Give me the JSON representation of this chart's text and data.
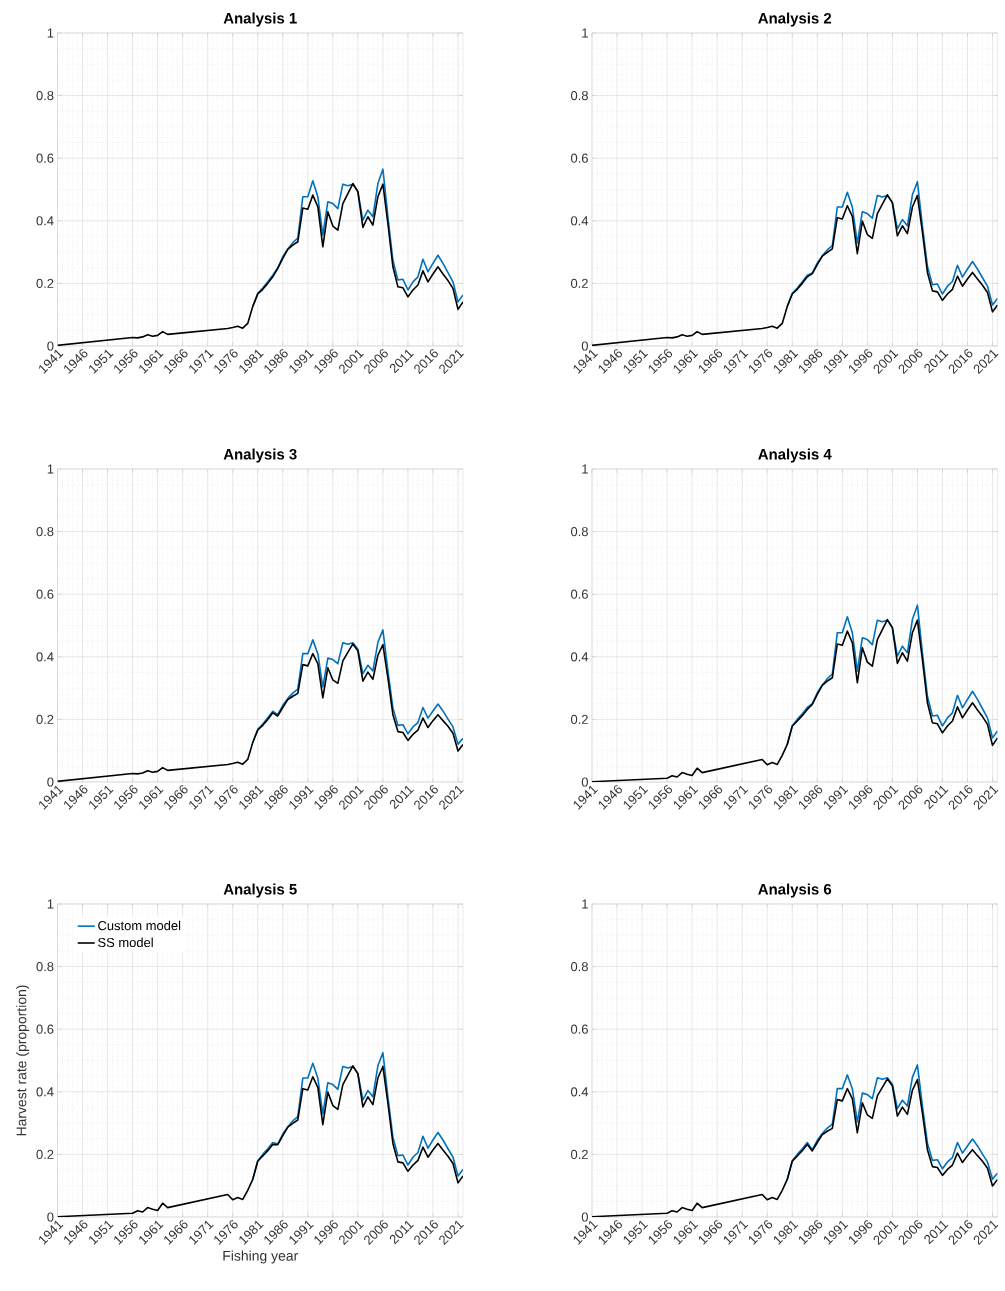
{
  "chart_data": [
    {
      "type": "line",
      "title": "Analysis 1",
      "x": [
        1941,
        1956,
        1957,
        1958,
        1959,
        1960,
        1961,
        1962,
        1963,
        1975,
        1976,
        1977,
        1978,
        1979,
        1980,
        1981,
        1982,
        1983,
        1984,
        1985,
        1986,
        1987,
        1988,
        1989,
        1990,
        1991,
        1992,
        1993,
        1994,
        1995,
        1996,
        1997,
        1998,
        1999,
        2000,
        2001,
        2002,
        2003,
        2004,
        2005,
        2006,
        2007,
        2008,
        2009,
        2010,
        2011,
        2012,
        2013,
        2014,
        2015,
        2016,
        2017,
        2018,
        2019,
        2020,
        2021,
        2022
      ],
      "xlim": [
        1941,
        2022
      ],
      "ylim": [
        0,
        1
      ],
      "xticks": [
        1941,
        1946,
        1951,
        1956,
        1961,
        1966,
        1971,
        1976,
        1981,
        1986,
        1991,
        1996,
        2001,
        2006,
        2011,
        2016,
        2021
      ],
      "yticks": [
        0,
        0.2,
        0.4,
        0.6,
        0.8,
        1
      ],
      "grid": true,
      "series": [
        {
          "color": "#0072bd",
          "values": [
            null,
            null,
            null,
            null,
            null,
            null,
            null,
            null,
            null,
            null,
            null,
            null,
            null,
            null,
            0.126,
            0.168,
            0.185,
            0.205,
            0.226,
            0.25,
            0.285,
            0.31,
            0.33,
            0.345,
            0.477,
            0.477,
            0.528,
            0.477,
            0.354,
            0.461,
            0.455,
            0.439,
            0.517,
            0.512,
            0.517,
            0.493,
            0.402,
            0.434,
            0.413,
            0.519,
            0.565,
            0.413,
            0.274,
            0.211,
            0.213,
            0.179,
            0.205,
            0.221,
            0.277,
            0.237,
            0.264,
            0.29,
            0.264,
            0.234,
            0.205,
            0.141,
            0.163
          ]
        },
        {
          "color": "#000000",
          "values": [
            0.002,
            0.027,
            0.026,
            0.029,
            0.036,
            0.031,
            0.034,
            0.046,
            0.037,
            0.056,
            0.059,
            0.063,
            0.057,
            0.072,
            0.126,
            0.166,
            0.181,
            0.2,
            0.221,
            0.248,
            0.28,
            0.309,
            0.322,
            0.333,
            0.441,
            0.437,
            0.482,
            0.445,
            0.317,
            0.429,
            0.383,
            0.37,
            0.455,
            0.487,
            0.519,
            0.493,
            0.379,
            0.413,
            0.386,
            0.477,
            0.517,
            0.391,
            0.253,
            0.189,
            0.186,
            0.157,
            0.179,
            0.195,
            0.24,
            0.205,
            0.23,
            0.253,
            0.23,
            0.209,
            0.184,
            0.117,
            0.141
          ]
        }
      ]
    },
    {
      "type": "line",
      "title": "Analysis 2",
      "x": [
        1941,
        1956,
        1957,
        1958,
        1959,
        1960,
        1961,
        1962,
        1963,
        1975,
        1976,
        1977,
        1978,
        1979,
        1980,
        1981,
        1982,
        1983,
        1984,
        1985,
        1986,
        1987,
        1988,
        1989,
        1990,
        1991,
        1992,
        1993,
        1994,
        1995,
        1996,
        1997,
        1998,
        1999,
        2000,
        2001,
        2002,
        2003,
        2004,
        2005,
        2006,
        2007,
        2008,
        2009,
        2010,
        2011,
        2012,
        2013,
        2014,
        2015,
        2016,
        2017,
        2018,
        2019,
        2020,
        2021,
        2022
      ],
      "xlim": [
        1941,
        2022
      ],
      "ylim": [
        0,
        1
      ],
      "xticks": [
        1941,
        1946,
        1951,
        1956,
        1961,
        1966,
        1971,
        1976,
        1981,
        1986,
        1991,
        1996,
        2001,
        2006,
        2011,
        2016,
        2021
      ],
      "yticks": [
        0,
        0.2,
        0.4,
        0.6,
        0.8,
        1
      ],
      "grid": true,
      "series": [
        {
          "color": "#0072bd",
          "values": [
            null,
            null,
            null,
            null,
            null,
            null,
            null,
            null,
            null,
            null,
            null,
            null,
            null,
            null,
            0.126,
            0.168,
            0.185,
            0.205,
            0.226,
            0.233,
            0.265,
            0.288,
            0.307,
            0.321,
            0.444,
            0.444,
            0.491,
            0.444,
            0.329,
            0.429,
            0.423,
            0.408,
            0.481,
            0.476,
            0.481,
            0.458,
            0.374,
            0.404,
            0.384,
            0.483,
            0.525,
            0.384,
            0.255,
            0.196,
            0.198,
            0.166,
            0.191,
            0.206,
            0.258,
            0.22,
            0.246,
            0.27,
            0.246,
            0.218,
            0.191,
            0.131,
            0.152
          ]
        },
        {
          "color": "#000000",
          "values": [
            0.002,
            0.027,
            0.026,
            0.029,
            0.036,
            0.031,
            0.034,
            0.046,
            0.037,
            0.056,
            0.059,
            0.063,
            0.057,
            0.072,
            0.126,
            0.166,
            0.181,
            0.2,
            0.221,
            0.231,
            0.26,
            0.287,
            0.299,
            0.31,
            0.41,
            0.406,
            0.448,
            0.414,
            0.295,
            0.399,
            0.356,
            0.344,
            0.423,
            0.453,
            0.483,
            0.458,
            0.352,
            0.384,
            0.359,
            0.444,
            0.481,
            0.364,
            0.235,
            0.176,
            0.173,
            0.146,
            0.166,
            0.181,
            0.223,
            0.191,
            0.214,
            0.235,
            0.214,
            0.194,
            0.171,
            0.109,
            0.131
          ]
        }
      ]
    },
    {
      "type": "line",
      "title": "Analysis 3",
      "x": [
        1941,
        1956,
        1957,
        1958,
        1959,
        1960,
        1961,
        1962,
        1963,
        1975,
        1976,
        1977,
        1978,
        1979,
        1980,
        1981,
        1982,
        1983,
        1984,
        1985,
        1986,
        1987,
        1988,
        1989,
        1990,
        1991,
        1992,
        1993,
        1994,
        1995,
        1996,
        1997,
        1998,
        1999,
        2000,
        2001,
        2002,
        2003,
        2004,
        2005,
        2006,
        2007,
        2008,
        2009,
        2010,
        2011,
        2012,
        2013,
        2014,
        2015,
        2016,
        2017,
        2018,
        2019,
        2020,
        2021,
        2022
      ],
      "xlim": [
        1941,
        2022
      ],
      "ylim": [
        0,
        1
      ],
      "xticks": [
        1941,
        1946,
        1951,
        1956,
        1961,
        1966,
        1971,
        1976,
        1981,
        1986,
        1991,
        1996,
        2001,
        2006,
        2011,
        2016,
        2021
      ],
      "yticks": [
        0,
        0.2,
        0.4,
        0.6,
        0.8,
        1
      ],
      "grid": true,
      "series": [
        {
          "color": "#0072bd",
          "values": [
            null,
            null,
            null,
            null,
            null,
            null,
            null,
            null,
            null,
            null,
            null,
            null,
            null,
            null,
            0.126,
            0.168,
            0.185,
            0.205,
            0.226,
            0.215,
            0.245,
            0.267,
            0.284,
            0.297,
            0.41,
            0.41,
            0.454,
            0.41,
            0.304,
            0.396,
            0.391,
            0.378,
            0.445,
            0.44,
            0.445,
            0.424,
            0.346,
            0.373,
            0.355,
            0.446,
            0.486,
            0.355,
            0.236,
            0.181,
            0.183,
            0.154,
            0.176,
            0.19,
            0.238,
            0.204,
            0.227,
            0.249,
            0.227,
            0.201,
            0.176,
            0.121,
            0.14
          ]
        },
        {
          "color": "#000000",
          "values": [
            0.002,
            0.027,
            0.026,
            0.029,
            0.036,
            0.031,
            0.034,
            0.046,
            0.037,
            0.056,
            0.059,
            0.063,
            0.057,
            0.072,
            0.126,
            0.166,
            0.181,
            0.2,
            0.221,
            0.211,
            0.238,
            0.263,
            0.274,
            0.283,
            0.375,
            0.371,
            0.41,
            0.378,
            0.269,
            0.365,
            0.326,
            0.315,
            0.387,
            0.414,
            0.441,
            0.419,
            0.322,
            0.351,
            0.328,
            0.405,
            0.439,
            0.332,
            0.215,
            0.161,
            0.158,
            0.133,
            0.152,
            0.166,
            0.204,
            0.174,
            0.196,
            0.215,
            0.196,
            0.178,
            0.156,
            0.099,
            0.12
          ]
        }
      ]
    },
    {
      "type": "line",
      "title": "Analysis 4",
      "x": [
        1941,
        1956,
        1957,
        1958,
        1959,
        1960,
        1961,
        1962,
        1963,
        1975,
        1976,
        1977,
        1978,
        1979,
        1980,
        1981,
        1982,
        1983,
        1984,
        1985,
        1986,
        1987,
        1988,
        1989,
        1990,
        1991,
        1992,
        1993,
        1994,
        1995,
        1996,
        1997,
        1998,
        1999,
        2000,
        2001,
        2002,
        2003,
        2004,
        2005,
        2006,
        2007,
        2008,
        2009,
        2010,
        2011,
        2012,
        2013,
        2014,
        2015,
        2016,
        2017,
        2018,
        2019,
        2020,
        2021,
        2022
      ],
      "xlim": [
        1941,
        2022
      ],
      "ylim": [
        0,
        1
      ],
      "xticks": [
        1941,
        1946,
        1951,
        1956,
        1961,
        1966,
        1971,
        1976,
        1981,
        1986,
        1991,
        1996,
        2001,
        2006,
        2011,
        2016,
        2021
      ],
      "yticks": [
        0,
        0.2,
        0.4,
        0.6,
        0.8,
        1
      ],
      "grid": true,
      "series": [
        {
          "color": "#0072bd",
          "values": [
            null,
            null,
            null,
            null,
            null,
            null,
            null,
            null,
            null,
            null,
            null,
            null,
            null,
            null,
            0.12,
            0.18,
            0.2,
            0.218,
            0.238,
            0.25,
            0.285,
            0.31,
            0.33,
            0.345,
            0.477,
            0.477,
            0.528,
            0.477,
            0.354,
            0.461,
            0.455,
            0.439,
            0.517,
            0.512,
            0.517,
            0.493,
            0.402,
            0.434,
            0.413,
            0.519,
            0.565,
            0.413,
            0.274,
            0.211,
            0.213,
            0.179,
            0.205,
            0.221,
            0.277,
            0.237,
            0.264,
            0.29,
            0.264,
            0.234,
            0.205,
            0.141,
            0.163
          ]
        },
        {
          "color": "#000000",
          "values": [
            0.001,
            0.012,
            0.02,
            0.016,
            0.03,
            0.025,
            0.021,
            0.044,
            0.03,
            0.072,
            0.055,
            0.062,
            0.056,
            0.085,
            0.12,
            0.178,
            0.195,
            0.212,
            0.232,
            0.248,
            0.28,
            0.309,
            0.322,
            0.333,
            0.441,
            0.437,
            0.482,
            0.445,
            0.317,
            0.429,
            0.383,
            0.37,
            0.455,
            0.487,
            0.519,
            0.493,
            0.379,
            0.413,
            0.386,
            0.477,
            0.517,
            0.391,
            0.253,
            0.189,
            0.186,
            0.157,
            0.179,
            0.195,
            0.24,
            0.205,
            0.23,
            0.253,
            0.23,
            0.209,
            0.184,
            0.117,
            0.141
          ]
        }
      ]
    },
    {
      "type": "line",
      "title": "Analysis 5",
      "xlabel": "Fishing year",
      "ylabel": "Harvest rate (proportion)",
      "legend": "top left",
      "x": [
        1941,
        1956,
        1957,
        1958,
        1959,
        1960,
        1961,
        1962,
        1963,
        1975,
        1976,
        1977,
        1978,
        1979,
        1980,
        1981,
        1982,
        1983,
        1984,
        1985,
        1986,
        1987,
        1988,
        1989,
        1990,
        1991,
        1992,
        1993,
        1994,
        1995,
        1996,
        1997,
        1998,
        1999,
        2000,
        2001,
        2002,
        2003,
        2004,
        2005,
        2006,
        2007,
        2008,
        2009,
        2010,
        2011,
        2012,
        2013,
        2014,
        2015,
        2016,
        2017,
        2018,
        2019,
        2020,
        2021,
        2022
      ],
      "xlim": [
        1941,
        2022
      ],
      "ylim": [
        0,
        1
      ],
      "xticks": [
        1941,
        1946,
        1951,
        1956,
        1961,
        1966,
        1971,
        1976,
        1981,
        1986,
        1991,
        1996,
        2001,
        2006,
        2011,
        2016,
        2021
      ],
      "yticks": [
        0,
        0.2,
        0.4,
        0.6,
        0.8,
        1
      ],
      "grid": true,
      "series": [
        {
          "name": "Custom model",
          "color": "#0072bd",
          "values": [
            null,
            null,
            null,
            null,
            null,
            null,
            null,
            null,
            null,
            null,
            null,
            null,
            null,
            null,
            0.12,
            0.18,
            0.2,
            0.218,
            0.238,
            0.233,
            0.265,
            0.288,
            0.307,
            0.321,
            0.444,
            0.444,
            0.491,
            0.444,
            0.329,
            0.429,
            0.423,
            0.408,
            0.481,
            0.476,
            0.481,
            0.458,
            0.374,
            0.404,
            0.384,
            0.483,
            0.525,
            0.384,
            0.255,
            0.196,
            0.198,
            0.166,
            0.191,
            0.206,
            0.258,
            0.22,
            0.246,
            0.27,
            0.246,
            0.218,
            0.191,
            0.131,
            0.152
          ]
        },
        {
          "name": "SS model",
          "color": "#000000",
          "values": [
            0.001,
            0.012,
            0.02,
            0.016,
            0.03,
            0.025,
            0.021,
            0.044,
            0.03,
            0.072,
            0.055,
            0.062,
            0.056,
            0.085,
            0.12,
            0.178,
            0.195,
            0.212,
            0.232,
            0.231,
            0.26,
            0.287,
            0.299,
            0.31,
            0.41,
            0.406,
            0.448,
            0.414,
            0.295,
            0.399,
            0.356,
            0.344,
            0.423,
            0.453,
            0.483,
            0.458,
            0.352,
            0.384,
            0.359,
            0.444,
            0.481,
            0.364,
            0.235,
            0.176,
            0.173,
            0.146,
            0.166,
            0.181,
            0.223,
            0.191,
            0.214,
            0.235,
            0.214,
            0.194,
            0.171,
            0.109,
            0.131
          ]
        }
      ]
    },
    {
      "type": "line",
      "title": "Analysis 6",
      "x": [
        1941,
        1956,
        1957,
        1958,
        1959,
        1960,
        1961,
        1962,
        1963,
        1975,
        1976,
        1977,
        1978,
        1979,
        1980,
        1981,
        1982,
        1983,
        1984,
        1985,
        1986,
        1987,
        1988,
        1989,
        1990,
        1991,
        1992,
        1993,
        1994,
        1995,
        1996,
        1997,
        1998,
        1999,
        2000,
        2001,
        2002,
        2003,
        2004,
        2005,
        2006,
        2007,
        2008,
        2009,
        2010,
        2011,
        2012,
        2013,
        2014,
        2015,
        2016,
        2017,
        2018,
        2019,
        2020,
        2021,
        2022
      ],
      "xlim": [
        1941,
        2022
      ],
      "ylim": [
        0,
        1
      ],
      "xticks": [
        1941,
        1946,
        1951,
        1956,
        1961,
        1966,
        1971,
        1976,
        1981,
        1986,
        1991,
        1996,
        2001,
        2006,
        2011,
        2016,
        2021
      ],
      "yticks": [
        0,
        0.2,
        0.4,
        0.6,
        0.8,
        1
      ],
      "grid": true,
      "series": [
        {
          "color": "#0072bd",
          "values": [
            null,
            null,
            null,
            null,
            null,
            null,
            null,
            null,
            null,
            null,
            null,
            null,
            null,
            null,
            0.12,
            0.18,
            0.2,
            0.218,
            0.238,
            0.215,
            0.245,
            0.267,
            0.284,
            0.297,
            0.41,
            0.41,
            0.454,
            0.41,
            0.304,
            0.396,
            0.391,
            0.378,
            0.445,
            0.44,
            0.445,
            0.424,
            0.346,
            0.373,
            0.355,
            0.446,
            0.486,
            0.355,
            0.236,
            0.181,
            0.183,
            0.154,
            0.176,
            0.19,
            0.238,
            0.204,
            0.227,
            0.249,
            0.227,
            0.201,
            0.176,
            0.121,
            0.14
          ]
        },
        {
          "color": "#000000",
          "values": [
            0.001,
            0.012,
            0.02,
            0.016,
            0.03,
            0.025,
            0.021,
            0.044,
            0.03,
            0.072,
            0.055,
            0.062,
            0.056,
            0.085,
            0.12,
            0.178,
            0.195,
            0.212,
            0.232,
            0.211,
            0.238,
            0.263,
            0.274,
            0.283,
            0.375,
            0.371,
            0.41,
            0.378,
            0.269,
            0.365,
            0.326,
            0.315,
            0.387,
            0.414,
            0.441,
            0.419,
            0.322,
            0.351,
            0.328,
            0.405,
            0.439,
            0.332,
            0.215,
            0.161,
            0.158,
            0.133,
            0.152,
            0.166,
            0.204,
            0.174,
            0.196,
            0.215,
            0.196,
            0.178,
            0.156,
            0.099,
            0.12
          ]
        }
      ]
    }
  ]
}
